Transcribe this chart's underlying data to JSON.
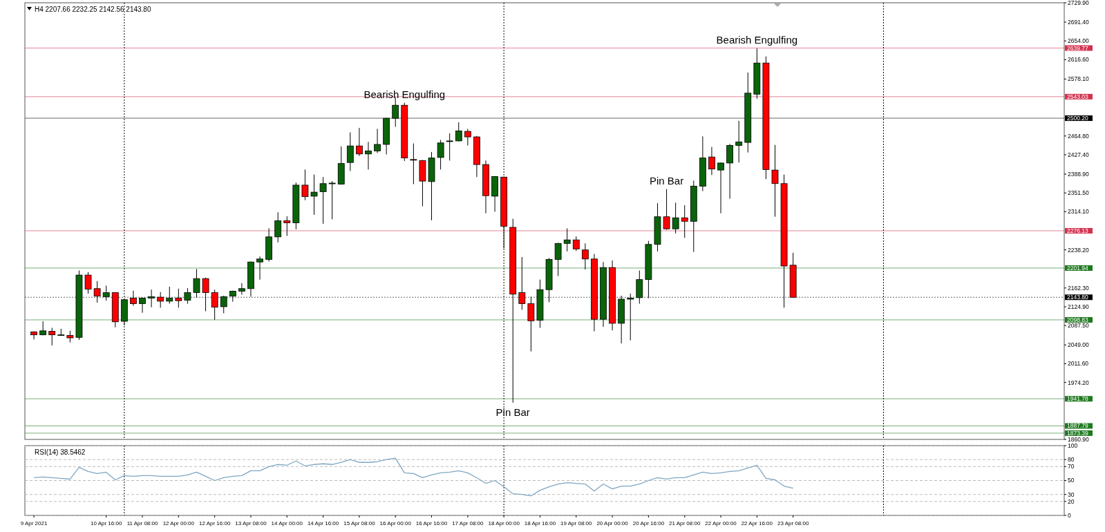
{
  "chart_data": [
    {
      "type": "candlestick",
      "title": "H4  2207.66 2232.25 2142.56 2143.80",
      "x": [
        "2021-04-09T08:00",
        "2021-04-09T12:00",
        "2021-04-09T16:00",
        "2021-04-09T20:00",
        "2021-04-10T00:00",
        "2021-04-10T04:00",
        "2021-04-10T08:00",
        "2021-04-10T12:00",
        "2021-04-10T16:00",
        "2021-04-10T20:00",
        "2021-04-11T00:00",
        "2021-04-11T04:00",
        "2021-04-11T08:00",
        "2021-04-11T12:00",
        "2021-04-11T16:00",
        "2021-04-11T20:00",
        "2021-04-12T00:00",
        "2021-04-12T04:00",
        "2021-04-12T08:00",
        "2021-04-12T12:00",
        "2021-04-12T16:00",
        "2021-04-12T20:00",
        "2021-04-13T00:00",
        "2021-04-13T04:00",
        "2021-04-13T08:00",
        "2021-04-13T12:00",
        "2021-04-13T16:00",
        "2021-04-13T20:00",
        "2021-04-14T00:00",
        "2021-04-14T04:00",
        "2021-04-14T08:00",
        "2021-04-14T12:00",
        "2021-04-14T16:00",
        "2021-04-14T20:00",
        "2021-04-15T00:00",
        "2021-04-15T04:00",
        "2021-04-15T08:00",
        "2021-04-15T12:00",
        "2021-04-15T16:00",
        "2021-04-15T20:00",
        "2021-04-16T00:00",
        "2021-04-16T04:00",
        "2021-04-16T08:00",
        "2021-04-16T12:00",
        "2021-04-16T16:00",
        "2021-04-16T20:00",
        "2021-04-17T00:00",
        "2021-04-17T04:00",
        "2021-04-17T08:00",
        "2021-04-17T12:00",
        "2021-04-17T16:00",
        "2021-04-17T20:00",
        "2021-04-18T00:00",
        "2021-04-18T04:00",
        "2021-04-18T08:00",
        "2021-04-18T12:00",
        "2021-04-18T16:00",
        "2021-04-18T20:00",
        "2021-04-19T00:00",
        "2021-04-19T04:00",
        "2021-04-19T08:00",
        "2021-04-19T12:00",
        "2021-04-19T16:00",
        "2021-04-19T20:00",
        "2021-04-20T00:00",
        "2021-04-20T04:00",
        "2021-04-20T08:00",
        "2021-04-20T12:00",
        "2021-04-20T16:00",
        "2021-04-20T20:00",
        "2021-04-21T00:00",
        "2021-04-21T04:00",
        "2021-04-21T08:00",
        "2021-04-21T12:00",
        "2021-04-21T16:00",
        "2021-04-21T20:00",
        "2021-04-22T00:00",
        "2021-04-22T04:00",
        "2021-04-22T08:00",
        "2021-04-22T12:00",
        "2021-04-22T16:00",
        "2021-04-22T20:00",
        "2021-04-23T00:00",
        "2021-04-23T04:00",
        "2021-04-23T08:00"
      ],
      "ohlc": [
        [
          2075,
          2076,
          2060,
          2069
        ],
        [
          2069,
          2096,
          2068,
          2077
        ],
        [
          2076,
          2083,
          2048,
          2069
        ],
        [
          2068,
          2081,
          2067,
          2069
        ],
        [
          2068,
          2077,
          2054,
          2063
        ],
        [
          2064,
          2197,
          2059,
          2188
        ],
        [
          2188,
          2194,
          2151,
          2160
        ],
        [
          2161,
          2176,
          2133,
          2146
        ],
        [
          2145,
          2167,
          2137,
          2153
        ],
        [
          2153,
          2154,
          2084,
          2095
        ],
        [
          2096,
          2140,
          2088,
          2139
        ],
        [
          2142,
          2157,
          2127,
          2131
        ],
        [
          2131,
          2143,
          2113,
          2142
        ],
        [
          2142,
          2159,
          2124,
          2145
        ],
        [
          2144,
          2154,
          2123,
          2136
        ],
        [
          2136,
          2165,
          2131,
          2142
        ],
        [
          2142,
          2161,
          2123,
          2137
        ],
        [
          2138,
          2162,
          2131,
          2153
        ],
        [
          2153,
          2200,
          2143,
          2181
        ],
        [
          2181,
          2183,
          2116,
          2153
        ],
        [
          2153,
          2159,
          2099,
          2124
        ],
        [
          2125,
          2147,
          2112,
          2145
        ],
        [
          2146,
          2157,
          2135,
          2156
        ],
        [
          2156,
          2172,
          2149,
          2161
        ],
        [
          2161,
          2215,
          2145,
          2214
        ],
        [
          2214,
          2225,
          2179,
          2220
        ],
        [
          2219,
          2281,
          2215,
          2264
        ],
        [
          2264,
          2313,
          2253,
          2296
        ],
        [
          2296,
          2305,
          2266,
          2292
        ],
        [
          2292,
          2372,
          2279,
          2367
        ],
        [
          2367,
          2398,
          2337,
          2344
        ],
        [
          2345,
          2388,
          2308,
          2353
        ],
        [
          2354,
          2383,
          2290,
          2370
        ],
        [
          2370,
          2375,
          2299,
          2371
        ],
        [
          2369,
          2444,
          2368,
          2410
        ],
        [
          2412,
          2472,
          2395,
          2445
        ],
        [
          2445,
          2481,
          2425,
          2429
        ],
        [
          2429,
          2453,
          2398,
          2435
        ],
        [
          2435,
          2479,
          2431,
          2448
        ],
        [
          2448,
          2501,
          2428,
          2500
        ],
        [
          2500,
          2542,
          2483,
          2526
        ],
        [
          2526,
          2531,
          2415,
          2421
        ],
        [
          2418,
          2450,
          2369,
          2417
        ],
        [
          2416,
          2417,
          2325,
          2375
        ],
        [
          2374,
          2433,
          2297,
          2421
        ],
        [
          2422,
          2457,
          2398,
          2451
        ],
        [
          2454,
          2470,
          2416,
          2455
        ],
        [
          2455,
          2492,
          2454,
          2475
        ],
        [
          2474,
          2479,
          2446,
          2463
        ],
        [
          2463,
          2465,
          2383,
          2408
        ],
        [
          2408,
          2416,
          2311,
          2346
        ],
        [
          2345,
          2385,
          2314,
          2384
        ],
        [
          2383,
          2384,
          2241,
          2285
        ],
        [
          2283,
          2300,
          1934,
          2150
        ],
        [
          2153,
          2224,
          2119,
          2131
        ],
        [
          2131,
          2145,
          2036,
          2097
        ],
        [
          2098,
          2179,
          2083,
          2159
        ],
        [
          2159,
          2222,
          2134,
          2219
        ],
        [
          2219,
          2252,
          2186,
          2251
        ],
        [
          2251,
          2281,
          2235,
          2258
        ],
        [
          2258,
          2265,
          2236,
          2240
        ],
        [
          2238,
          2251,
          2199,
          2220
        ],
        [
          2220,
          2230,
          2076,
          2100
        ],
        [
          2100,
          2214,
          2085,
          2203
        ],
        [
          2203,
          2217,
          2078,
          2092
        ],
        [
          2092,
          2147,
          2052,
          2140
        ],
        [
          2140,
          2151,
          2058,
          2142
        ],
        [
          2143,
          2197,
          2131,
          2179
        ],
        [
          2179,
          2256,
          2142,
          2249
        ],
        [
          2249,
          2331,
          2235,
          2304
        ],
        [
          2304,
          2359,
          2278,
          2280
        ],
        [
          2280,
          2332,
          2271,
          2302
        ],
        [
          2302,
          2327,
          2262,
          2295
        ],
        [
          2295,
          2376,
          2234,
          2365
        ],
        [
          2365,
          2464,
          2355,
          2421
        ],
        [
          2423,
          2443,
          2387,
          2399
        ],
        [
          2397,
          2412,
          2311,
          2411
        ],
        [
          2411,
          2449,
          2340,
          2446
        ],
        [
          2446,
          2495,
          2412,
          2453
        ],
        [
          2452,
          2591,
          2432,
          2550
        ],
        [
          2548,
          2639,
          2539,
          2610
        ],
        [
          2610,
          2623,
          2379,
          2398
        ],
        [
          2397,
          2447,
          2304,
          2370
        ],
        [
          2370,
          2388,
          2123,
          2206
        ],
        [
          2207.66,
          2232.25,
          2142.56,
          2143.8
        ]
      ],
      "xlim": [
        "2021-04-09T04:00",
        "2021-04-28T08:00"
      ],
      "ylim": [
        1860.9,
        2729.9
      ],
      "yticks": [
        {
          "value": 2729.9,
          "label": "2729.90"
        },
        {
          "value": 2691.4,
          "label": "2691.40"
        },
        {
          "value": 2654,
          "label": "2654.00"
        },
        {
          "value": 2616.6,
          "label": "2616.60"
        },
        {
          "value": 2578.1,
          "label": "2578.10"
        },
        {
          "value": 2464.8,
          "label": "2464.80"
        },
        {
          "value": 2427.4,
          "label": "2427.40"
        },
        {
          "value": 2388.9,
          "label": "2388.90"
        },
        {
          "value": 2351.5,
          "label": "2351.50"
        },
        {
          "value": 2314.1,
          "label": "2314.10"
        },
        {
          "value": 2238.2,
          "label": "2238.20"
        },
        {
          "value": 2162.3,
          "label": "2162.30"
        },
        {
          "value": 2124.9,
          "label": "2124.90"
        },
        {
          "value": 2087.5,
          "label": "2087.50"
        },
        {
          "value": 2049,
          "label": "2049.00"
        },
        {
          "value": 2011.6,
          "label": "2011.60"
        },
        {
          "value": 1974.2,
          "label": "1974.20"
        },
        {
          "value": 1860.9,
          "label": "1860.90"
        }
      ],
      "tick_labels": "y",
      "ref_lines": [
        {
          "axis": "y",
          "value": 2639.77,
          "label": "2639.77",
          "color": "#d2324f"
        },
        {
          "axis": "y",
          "value": 2543.03,
          "label": "2543.03",
          "color": "#d2324f"
        },
        {
          "axis": "y",
          "value": 2500.2,
          "label": "2500.20",
          "color": "#000000"
        },
        {
          "axis": "y",
          "value": 2276.13,
          "label": "2276.13",
          "color": "#d2324f"
        },
        {
          "axis": "y",
          "value": 2201.94,
          "label": "2201.94",
          "color": "#1e7a1e"
        },
        {
          "axis": "y",
          "value": 2143.8,
          "label": "2143.80",
          "color": "#000000",
          "line_style": "dotted"
        },
        {
          "axis": "y",
          "value": 2098.83,
          "label": "2098.83",
          "color": "#1e7a1e"
        },
        {
          "axis": "y",
          "value": 1941.78,
          "label": "1941.78",
          "color": "#1e7a1e"
        },
        {
          "axis": "y",
          "value": 1887.79,
          "label": "1887.79",
          "color": "#1e7a1e"
        },
        {
          "axis": "y",
          "value": 1873.39,
          "label": "1873.39",
          "color": "#1e7a1e"
        },
        {
          "axis": "x",
          "value": "2021-04-11T00:00",
          "color": "#000000",
          "line_style": "dotted"
        },
        {
          "axis": "x",
          "value": "2021-04-18T00:00",
          "color": "#000000",
          "line_style": "dotted"
        },
        {
          "axis": "x",
          "value": "2021-04-25T00:00",
          "color": "#000000",
          "line_style": "dotted"
        }
      ],
      "annotations": [
        {
          "text": "Bearish Engulfing",
          "x": "2021-04-16T04:00",
          "y": 2531
        },
        {
          "text": "Bearish Engulfing",
          "x": "2021-04-22T16:00",
          "y": 2639
        },
        {
          "text": "Pin Bar",
          "x": "2021-04-21T00:00",
          "y": 2359
        },
        {
          "text": "Pin Bar",
          "x": "2021-04-18T04:00",
          "y": 1934
        }
      ]
    },
    {
      "type": "line",
      "title": "RSI(14) 38.5462",
      "x": [
        "2021-04-09T08:00",
        "2021-04-09T12:00",
        "2021-04-09T16:00",
        "2021-04-09T20:00",
        "2021-04-10T00:00",
        "2021-04-10T04:00",
        "2021-04-10T08:00",
        "2021-04-10T12:00",
        "2021-04-10T16:00",
        "2021-04-10T20:00",
        "2021-04-11T00:00",
        "2021-04-11T04:00",
        "2021-04-11T08:00",
        "2021-04-11T12:00",
        "2021-04-11T16:00",
        "2021-04-11T20:00",
        "2021-04-12T00:00",
        "2021-04-12T04:00",
        "2021-04-12T08:00",
        "2021-04-12T12:00",
        "2021-04-12T16:00",
        "2021-04-12T20:00",
        "2021-04-13T00:00",
        "2021-04-13T04:00",
        "2021-04-13T08:00",
        "2021-04-13T12:00",
        "2021-04-13T16:00",
        "2021-04-13T20:00",
        "2021-04-14T00:00",
        "2021-04-14T04:00",
        "2021-04-14T08:00",
        "2021-04-14T12:00",
        "2021-04-14T16:00",
        "2021-04-14T20:00",
        "2021-04-15T00:00",
        "2021-04-15T04:00",
        "2021-04-15T08:00",
        "2021-04-15T12:00",
        "2021-04-15T16:00",
        "2021-04-15T20:00",
        "2021-04-16T00:00",
        "2021-04-16T04:00",
        "2021-04-16T08:00",
        "2021-04-16T12:00",
        "2021-04-16T16:00",
        "2021-04-16T20:00",
        "2021-04-17T00:00",
        "2021-04-17T04:00",
        "2021-04-17T08:00",
        "2021-04-17T12:00",
        "2021-04-17T16:00",
        "2021-04-17T20:00",
        "2021-04-18T00:00",
        "2021-04-18T04:00",
        "2021-04-18T08:00",
        "2021-04-18T12:00",
        "2021-04-18T16:00",
        "2021-04-18T20:00",
        "2021-04-19T00:00",
        "2021-04-19T04:00",
        "2021-04-19T08:00",
        "2021-04-19T12:00",
        "2021-04-19T16:00",
        "2021-04-19T20:00",
        "2021-04-20T00:00",
        "2021-04-20T04:00",
        "2021-04-20T08:00",
        "2021-04-20T12:00",
        "2021-04-20T16:00",
        "2021-04-20T20:00",
        "2021-04-21T00:00",
        "2021-04-21T04:00",
        "2021-04-21T08:00",
        "2021-04-21T12:00",
        "2021-04-21T16:00",
        "2021-04-21T20:00",
        "2021-04-22T00:00",
        "2021-04-22T04:00",
        "2021-04-22T08:00",
        "2021-04-22T12:00",
        "2021-04-22T16:00",
        "2021-04-22T20:00",
        "2021-04-23T00:00",
        "2021-04-23T04:00",
        "2021-04-23T08:00"
      ],
      "series": [
        {
          "color": "#7fa6c2",
          "values": [
            54,
            55,
            54,
            53,
            52,
            69,
            63,
            60,
            62,
            51,
            57,
            56,
            57,
            57,
            56,
            56,
            56,
            58,
            62,
            56,
            50,
            54,
            56,
            57,
            64,
            64,
            70,
            73,
            72,
            78,
            71,
            73,
            74,
            73,
            76,
            80,
            76,
            76,
            77,
            80,
            82,
            61,
            60,
            54,
            58,
            61,
            62,
            64,
            61,
            54,
            46,
            50,
            41,
            31,
            30,
            28,
            36,
            41,
            45,
            47,
            46,
            45,
            35,
            45,
            38,
            42,
            42,
            45,
            50,
            54,
            52,
            54,
            54,
            58,
            62,
            60,
            61,
            63,
            64,
            68,
            72,
            53,
            51,
            42,
            39
          ]
        }
      ],
      "xlim": [
        "2021-04-09T04:00",
        "2021-04-28T08:00"
      ],
      "ylim": [
        0,
        100
      ],
      "yticks": [
        0,
        20,
        30,
        50,
        70,
        80,
        100
      ],
      "grid": "y",
      "line_style": "solid",
      "marker": "none",
      "xticks": [
        {
          "value": "2021-04-09T08:00",
          "label": "9 Apr 2021"
        },
        {
          "value": "2021-04-10T16:00",
          "label": "10 Apr 16:00"
        },
        {
          "value": "2021-04-11T08:00",
          "label": "11 Apr 08:00"
        },
        {
          "value": "2021-04-12T00:00",
          "label": "12 Apr 00:00"
        },
        {
          "value": "2021-04-12T16:00",
          "label": "12 Apr 16:00"
        },
        {
          "value": "2021-04-13T08:00",
          "label": "13 Apr 08:00"
        },
        {
          "value": "2021-04-14T00:00",
          "label": "14 Apr 00:00"
        },
        {
          "value": "2021-04-14T16:00",
          "label": "14 Apr 16:00"
        },
        {
          "value": "2021-04-15T08:00",
          "label": "15 Apr 08:00"
        },
        {
          "value": "2021-04-16T00:00",
          "label": "16 Apr 00:00"
        },
        {
          "value": "2021-04-16T16:00",
          "label": "16 Apr 16:00"
        },
        {
          "value": "2021-04-17T08:00",
          "label": "17 Apr 08:00"
        },
        {
          "value": "2021-04-18T00:00",
          "label": "18 Apr 00:00"
        },
        {
          "value": "2021-04-18T16:00",
          "label": "18 Apr 16:00"
        },
        {
          "value": "2021-04-19T08:00",
          "label": "19 Apr 08:00"
        },
        {
          "value": "2021-04-20T00:00",
          "label": "20 Apr 00:00"
        },
        {
          "value": "2021-04-20T16:00",
          "label": "20 Apr 16:00"
        },
        {
          "value": "2021-04-21T08:00",
          "label": "21 Apr 08:00"
        },
        {
          "value": "2021-04-22T00:00",
          "label": "22 Apr 00:00"
        },
        {
          "value": "2021-04-22T16:00",
          "label": "22 Apr 16:00"
        },
        {
          "value": "2021-04-23T08:00",
          "label": "23 Apr 08:00"
        }
      ],
      "ref_lines": [
        {
          "axis": "x",
          "value": "2021-04-11T00:00",
          "color": "#000000",
          "line_style": "dotted"
        },
        {
          "axis": "x",
          "value": "2021-04-18T00:00",
          "color": "#000000",
          "line_style": "dotted"
        },
        {
          "axis": "x",
          "value": "2021-04-25T00:00",
          "color": "#000000",
          "line_style": "dotted"
        }
      ]
    }
  ]
}
